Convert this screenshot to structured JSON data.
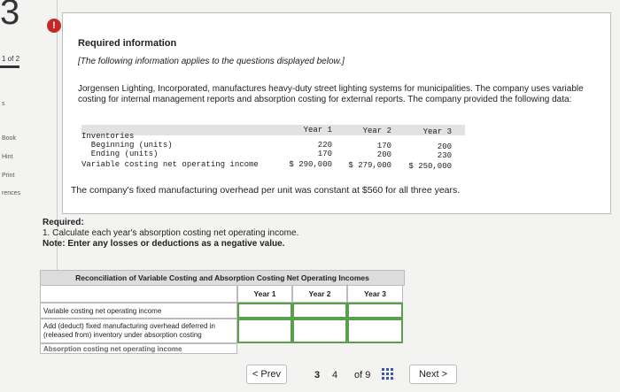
{
  "header": {
    "question_number": "3"
  },
  "sidebar": {
    "progress": "1 of 2",
    "items": [
      "s",
      "Book",
      "Hint",
      "Print",
      "rences"
    ]
  },
  "alert_icon": "!",
  "info": {
    "title": "Required information",
    "subtitle": "[The following information applies to the questions displayed below.]",
    "paragraph": "Jorgensen Lighting, Incorporated, manufactures heavy-duty street lighting systems for municipalities. The company uses variable costing for internal management reports and absorption costing for external reports. The company provided the following data:",
    "data_table": {
      "columns": [
        "Year 1",
        "Year 2",
        "Year 3"
      ],
      "rows": [
        [
          "Inventories",
          "",
          "",
          ""
        ],
        [
          "  Beginning (units)",
          "220",
          "170",
          "200"
        ],
        [
          "  Ending (units)",
          "170",
          "200",
          "230"
        ],
        [
          "Variable costing net operating income",
          "$ 290,000",
          "$ 279,000",
          "$ 250,000"
        ]
      ]
    },
    "note": "The company's fixed manufacturing overhead per unit was constant at $560 for all three years."
  },
  "required": {
    "heading": "Required:",
    "task": "1. Calculate each year's absorption costing net operating income.",
    "note": "Note: Enter any losses or deductions as a negative value."
  },
  "reconciliation": {
    "title": "Reconciliation of Variable Costing and Absorption Costing Net Operating Incomes",
    "columns": [
      "Year 1",
      "Year 2",
      "Year 3"
    ],
    "rows": [
      "Variable costing net operating income",
      "Add (deduct) fixed manufacturing overhead deferred in (released from) inventory under absorption costing",
      "Absorption costing net operating income"
    ]
  },
  "footer": {
    "prev": "< Prev",
    "pages": [
      "3",
      "4"
    ],
    "of": "of 9",
    "next": "Next >"
  }
}
